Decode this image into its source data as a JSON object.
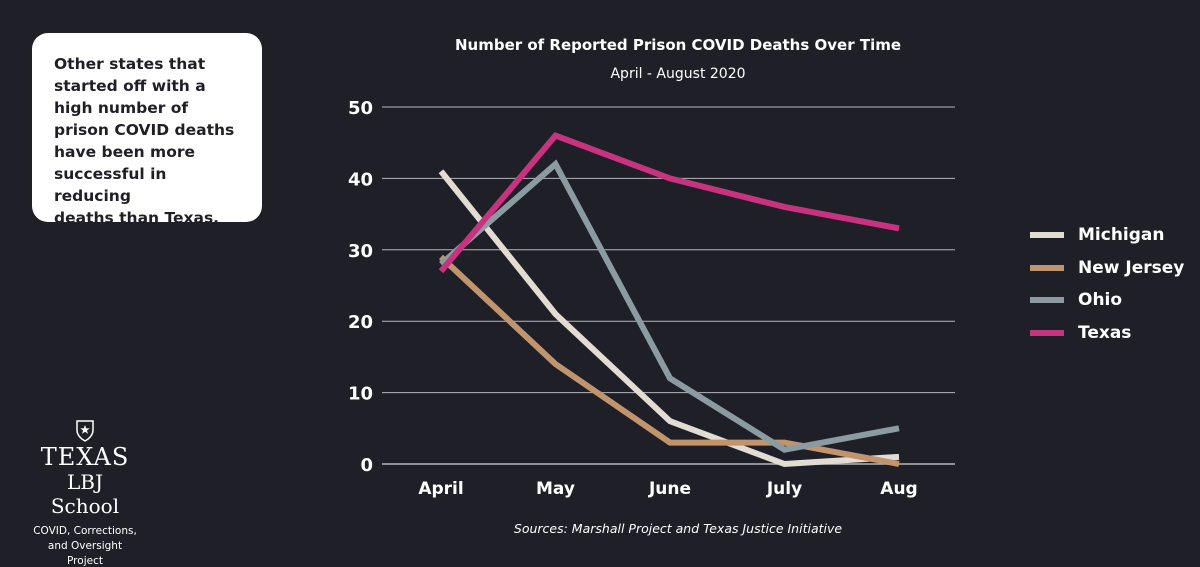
{
  "callout": {
    "lines": [
      "Other states that",
      "started off with a",
      "high number of",
      "prison COVID deaths",
      "have been more",
      "successful in reducing",
      "deaths than Texas."
    ]
  },
  "logo": {
    "line1": "TEXAS",
    "line2": "LBJ School",
    "caption_lines": [
      "COVID, Corrections,",
      "and Oversight Project"
    ]
  },
  "source": "Sources: Marshall Project and Texas Justice Initiative",
  "colors": {
    "background": "#1f1f27",
    "gridline": "#b5b5bb",
    "callout_bg": "#ffffff"
  },
  "chart_data": {
    "type": "line",
    "title": "Number of Reported Prison COVID Deaths Over Time",
    "subtitle": "April - August 2020",
    "xlabel": "",
    "ylabel": "",
    "categories": [
      "April",
      "May",
      "June",
      "July",
      "Aug"
    ],
    "ylim": [
      0,
      50
    ],
    "yticks": [
      0,
      10,
      20,
      30,
      40,
      50
    ],
    "grid": true,
    "legend_position": "right",
    "series": [
      {
        "name": "Michigan",
        "color": "#e3dcd3",
        "values": [
          41,
          21,
          6,
          0,
          1
        ]
      },
      {
        "name": "New Jersey",
        "color": "#c0946c",
        "values": [
          29,
          14,
          3,
          3,
          0
        ]
      },
      {
        "name": "Ohio",
        "color": "#8b9ba2",
        "values": [
          28,
          42,
          12,
          2,
          5
        ]
      },
      {
        "name": "Texas",
        "color": "#c8337f",
        "values": [
          27,
          46,
          40,
          36,
          33
        ]
      }
    ]
  }
}
